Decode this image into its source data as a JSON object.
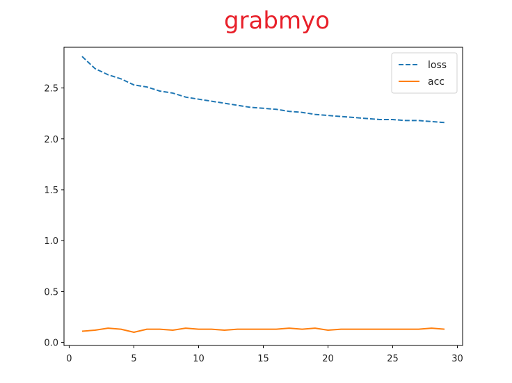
{
  "chart_data": {
    "type": "line",
    "title": "grabmyo",
    "xlabel": "",
    "ylabel": "",
    "xlim": [
      -0.4,
      30.4
    ],
    "ylim": [
      -0.03,
      2.9
    ],
    "xticks": [
      0,
      5,
      10,
      15,
      20,
      25,
      30
    ],
    "yticks": [
      0.0,
      0.5,
      1.0,
      1.5,
      2.0,
      2.5
    ],
    "xtick_labels": [
      "0",
      "5",
      "10",
      "15",
      "20",
      "25",
      "30"
    ],
    "ytick_labels": [
      "0.0",
      "0.5",
      "1.0",
      "1.5",
      "2.0",
      "2.5"
    ],
    "grid": false,
    "legend_position": "top-right",
    "x": [
      1,
      2,
      3,
      4,
      5,
      6,
      7,
      8,
      9,
      10,
      11,
      12,
      13,
      14,
      15,
      16,
      17,
      18,
      19,
      20,
      21,
      22,
      23,
      24,
      25,
      26,
      27,
      28,
      29
    ],
    "series": [
      {
        "name": "loss",
        "color": "#1f77b4",
        "style": "dashed",
        "values": [
          2.81,
          2.69,
          2.63,
          2.59,
          2.53,
          2.51,
          2.47,
          2.45,
          2.41,
          2.39,
          2.37,
          2.35,
          2.33,
          2.31,
          2.3,
          2.29,
          2.27,
          2.26,
          2.24,
          2.23,
          2.22,
          2.21,
          2.2,
          2.19,
          2.19,
          2.18,
          2.18,
          2.17,
          2.16
        ]
      },
      {
        "name": "acc",
        "color": "#ff7f0e",
        "style": "solid",
        "values": [
          0.11,
          0.12,
          0.14,
          0.13,
          0.1,
          0.13,
          0.13,
          0.12,
          0.14,
          0.13,
          0.13,
          0.12,
          0.13,
          0.13,
          0.13,
          0.13,
          0.14,
          0.13,
          0.14,
          0.12,
          0.13,
          0.13,
          0.13,
          0.13,
          0.13,
          0.13,
          0.13,
          0.14,
          0.13
        ]
      }
    ]
  }
}
